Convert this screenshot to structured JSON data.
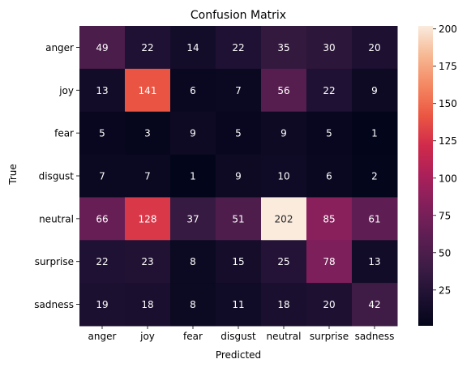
{
  "chart_data": {
    "type": "heatmap",
    "title": "Confusion Matrix",
    "xlabel": "Predicted",
    "ylabel": "True",
    "x_categories": [
      "anger",
      "joy",
      "fear",
      "disgust",
      "neutral",
      "surprise",
      "sadness"
    ],
    "y_categories": [
      "anger",
      "joy",
      "fear",
      "disgust",
      "neutral",
      "surprise",
      "sadness"
    ],
    "values": [
      [
        49,
        22,
        14,
        22,
        35,
        30,
        20
      ],
      [
        13,
        141,
        6,
        7,
        56,
        22,
        9
      ],
      [
        5,
        3,
        9,
        5,
        9,
        5,
        1
      ],
      [
        7,
        7,
        1,
        9,
        10,
        6,
        2
      ],
      [
        66,
        128,
        37,
        51,
        202,
        85,
        61
      ],
      [
        22,
        23,
        8,
        15,
        25,
        78,
        13
      ],
      [
        19,
        18,
        8,
        11,
        18,
        20,
        42
      ]
    ],
    "colormap": "rocket",
    "color_range": [
      1,
      202
    ],
    "colorbar_ticks": [
      25,
      50,
      75,
      100,
      125,
      150,
      175,
      200
    ],
    "annotations": true,
    "grid": false
  }
}
